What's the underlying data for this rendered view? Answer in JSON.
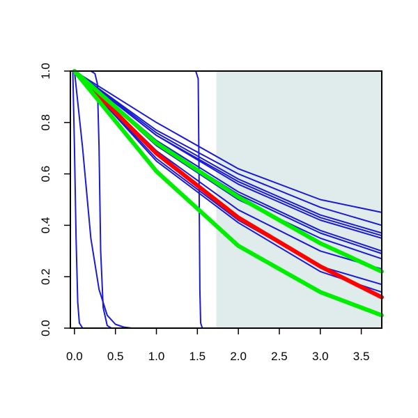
{
  "chart_data": {
    "type": "line",
    "title": "",
    "xlabel": "",
    "ylabel": "",
    "xlim": [
      -0.05,
      3.75
    ],
    "ylim": [
      0.0,
      1.0
    ],
    "grid": false,
    "x_ticks": [
      0.0,
      0.5,
      1.0,
      1.5,
      2.0,
      2.5,
      3.0,
      3.5
    ],
    "x_tick_labels": [
      "0.0",
      "0.5",
      "1.0",
      "1.5",
      "2.0",
      "2.5",
      "3.0",
      "3.5"
    ],
    "y_ticks": [
      0.0,
      0.2,
      0.4,
      0.6,
      0.8,
      1.0
    ],
    "y_tick_labels": [
      "0.0",
      "0.2",
      "0.4",
      "0.6",
      "0.8",
      "1.0"
    ],
    "shaded_region": {
      "x_from": 1.73,
      "x_to": 3.75,
      "color": "#e0ecec"
    },
    "colors": {
      "blue": "#1a1ad6",
      "red": "#ff0000",
      "green": "#00ee00",
      "frame": "#000000"
    },
    "series": [
      {
        "color": "blue",
        "weight": "thin",
        "x": [
          0,
          1,
          2,
          3,
          3.75
        ],
        "y": [
          1,
          0.8,
          0.62,
          0.5,
          0.45
        ]
      },
      {
        "color": "blue",
        "weight": "thin",
        "x": [
          0,
          1,
          2,
          3,
          3.75
        ],
        "y": [
          1,
          0.77,
          0.6,
          0.47,
          0.4
        ]
      },
      {
        "color": "blue",
        "weight": "thin",
        "x": [
          0,
          1,
          2,
          3,
          3.75
        ],
        "y": [
          1,
          0.76,
          0.58,
          0.44,
          0.37
        ]
      },
      {
        "color": "blue",
        "weight": "thin",
        "x": [
          0,
          1,
          2,
          3,
          3.75
        ],
        "y": [
          1,
          0.75,
          0.57,
          0.43,
          0.36
        ]
      },
      {
        "color": "blue",
        "weight": "thin",
        "x": [
          0,
          1,
          2,
          3,
          3.75
        ],
        "y": [
          1,
          0.75,
          0.56,
          0.42,
          0.35
        ]
      },
      {
        "color": "blue",
        "weight": "thin",
        "x": [
          0,
          1,
          2,
          3,
          3.75
        ],
        "y": [
          1,
          0.73,
          0.53,
          0.38,
          0.3
        ]
      },
      {
        "color": "blue",
        "weight": "thin",
        "x": [
          0,
          1,
          2,
          3,
          3.75
        ],
        "y": [
          1,
          0.72,
          0.52,
          0.37,
          0.29
        ]
      },
      {
        "color": "blue",
        "weight": "thin",
        "x": [
          0,
          1,
          2,
          3,
          3.75
        ],
        "y": [
          1,
          0.71,
          0.5,
          0.35,
          0.27
        ]
      },
      {
        "color": "blue",
        "weight": "thin",
        "x": [
          0,
          1,
          2,
          3,
          3.75
        ],
        "y": [
          1,
          0.69,
          0.46,
          0.3,
          0.23
        ]
      },
      {
        "color": "blue",
        "weight": "thin",
        "x": [
          0,
          1,
          2,
          3,
          3.75
        ],
        "y": [
          1,
          0.66,
          0.42,
          0.24,
          0.17
        ]
      },
      {
        "color": "blue",
        "weight": "thin",
        "x": [
          0,
          1,
          2,
          3,
          3.75
        ],
        "y": [
          1,
          0.65,
          0.41,
          0.22,
          0.14
        ]
      },
      {
        "color": "blue",
        "weight": "thin",
        "x": [
          -0.02,
          0.0,
          0.02,
          0.04,
          0.06,
          0.1
        ],
        "y": [
          1,
          0.7,
          0.35,
          0.1,
          0.02,
          0
        ]
      },
      {
        "color": "blue",
        "weight": "thin",
        "x": [
          0,
          0.1,
          0.2,
          0.3,
          0.4,
          0.5,
          0.6,
          0.7
        ],
        "y": [
          1,
          0.7,
          0.35,
          0.15,
          0.05,
          0.015,
          0.004,
          0
        ]
      },
      {
        "color": "blue",
        "weight": "thin",
        "x": [
          0.2,
          0.25,
          0.28,
          0.3,
          0.32,
          0.35,
          0.4,
          0.45
        ],
        "y": [
          1,
          0.99,
          0.95,
          0.7,
          0.3,
          0.08,
          0.01,
          0
        ]
      },
      {
        "color": "blue",
        "weight": "thin",
        "x": [
          1.48,
          1.51,
          1.52,
          1.53,
          1.54,
          1.56
        ],
        "y": [
          1,
          0.97,
          0.6,
          0.15,
          0.02,
          0
        ]
      },
      {
        "color": "red",
        "weight": "thick",
        "x": [
          0,
          1,
          2,
          3,
          3.75
        ],
        "y": [
          1,
          0.68,
          0.43,
          0.24,
          0.12
        ]
      },
      {
        "color": "green",
        "weight": "thick",
        "x": [
          0,
          1,
          2,
          3,
          3.75
        ],
        "y": [
          1,
          0.72,
          0.51,
          0.33,
          0.22
        ]
      },
      {
        "color": "green",
        "weight": "thick",
        "x": [
          0,
          1,
          2,
          3,
          3.75
        ],
        "y": [
          1,
          0.61,
          0.32,
          0.14,
          0.05
        ]
      }
    ]
  }
}
